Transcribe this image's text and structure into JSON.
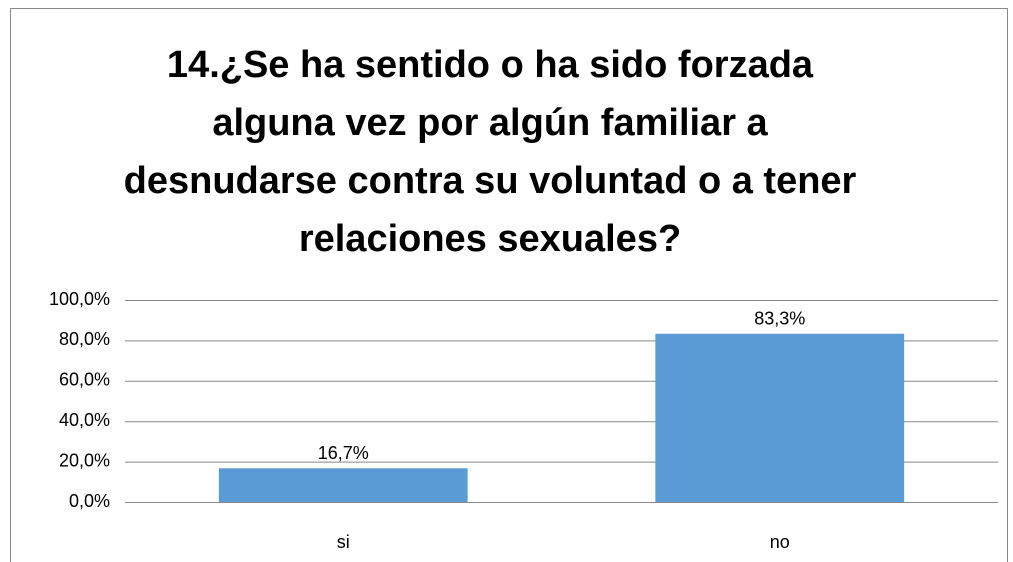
{
  "chart_data": {
    "type": "bar",
    "title": "14.¿Se ha sentido o ha sido forzada alguna vez por algún familiar a desnudarse contra su voluntad o a tener relaciones sexuales?",
    "categories": [
      "si",
      "no"
    ],
    "values": [
      16.7,
      83.3
    ],
    "value_labels": [
      "16,7%",
      "83,3%"
    ],
    "color": "#5b9bd5",
    "ylim": [
      0,
      100
    ],
    "yticks": [
      {
        "value": 0,
        "label": "0,0%"
      },
      {
        "value": 20,
        "label": "20,0%"
      },
      {
        "value": 40,
        "label": "40,0%"
      },
      {
        "value": 60,
        "label": "60,0%"
      },
      {
        "value": 80,
        "label": "80,0%"
      },
      {
        "value": 100,
        "label": "100,0%"
      }
    ],
    "grid": true
  }
}
